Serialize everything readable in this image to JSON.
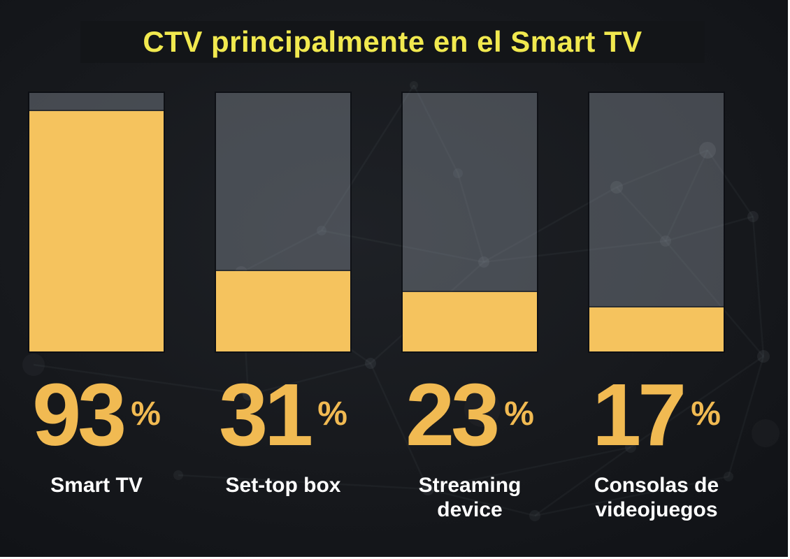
{
  "title_bar": {
    "text": "CTV principalmente en el Smart TV"
  },
  "chart_data": {
    "type": "bar",
    "title": "CTV principalmente en el Smart TV",
    "categories": [
      "Smart TV",
      "Set-top box",
      "Streaming device",
      "Consolas de videojuegos"
    ],
    "values": [
      93,
      31,
      23,
      17
    ],
    "unit": "%",
    "value_labels": [
      "93",
      "31",
      "23",
      "17"
    ],
    "ylim": [
      0,
      100
    ],
    "orientation": "vertical",
    "grid": false,
    "legend": false,
    "bar_style": "filled portion from bottom, remainder shown as translucent gray track"
  },
  "colors": {
    "background": "#17191d",
    "title_strip": "#131518",
    "title_text": "#f1e94f",
    "bar_fill": "#f5c35e",
    "bar_track": "rgba(148,156,165,0.38)",
    "value_text": "#f1ba52",
    "label_text": "#ffffff",
    "outer_border": "#ffffff"
  }
}
